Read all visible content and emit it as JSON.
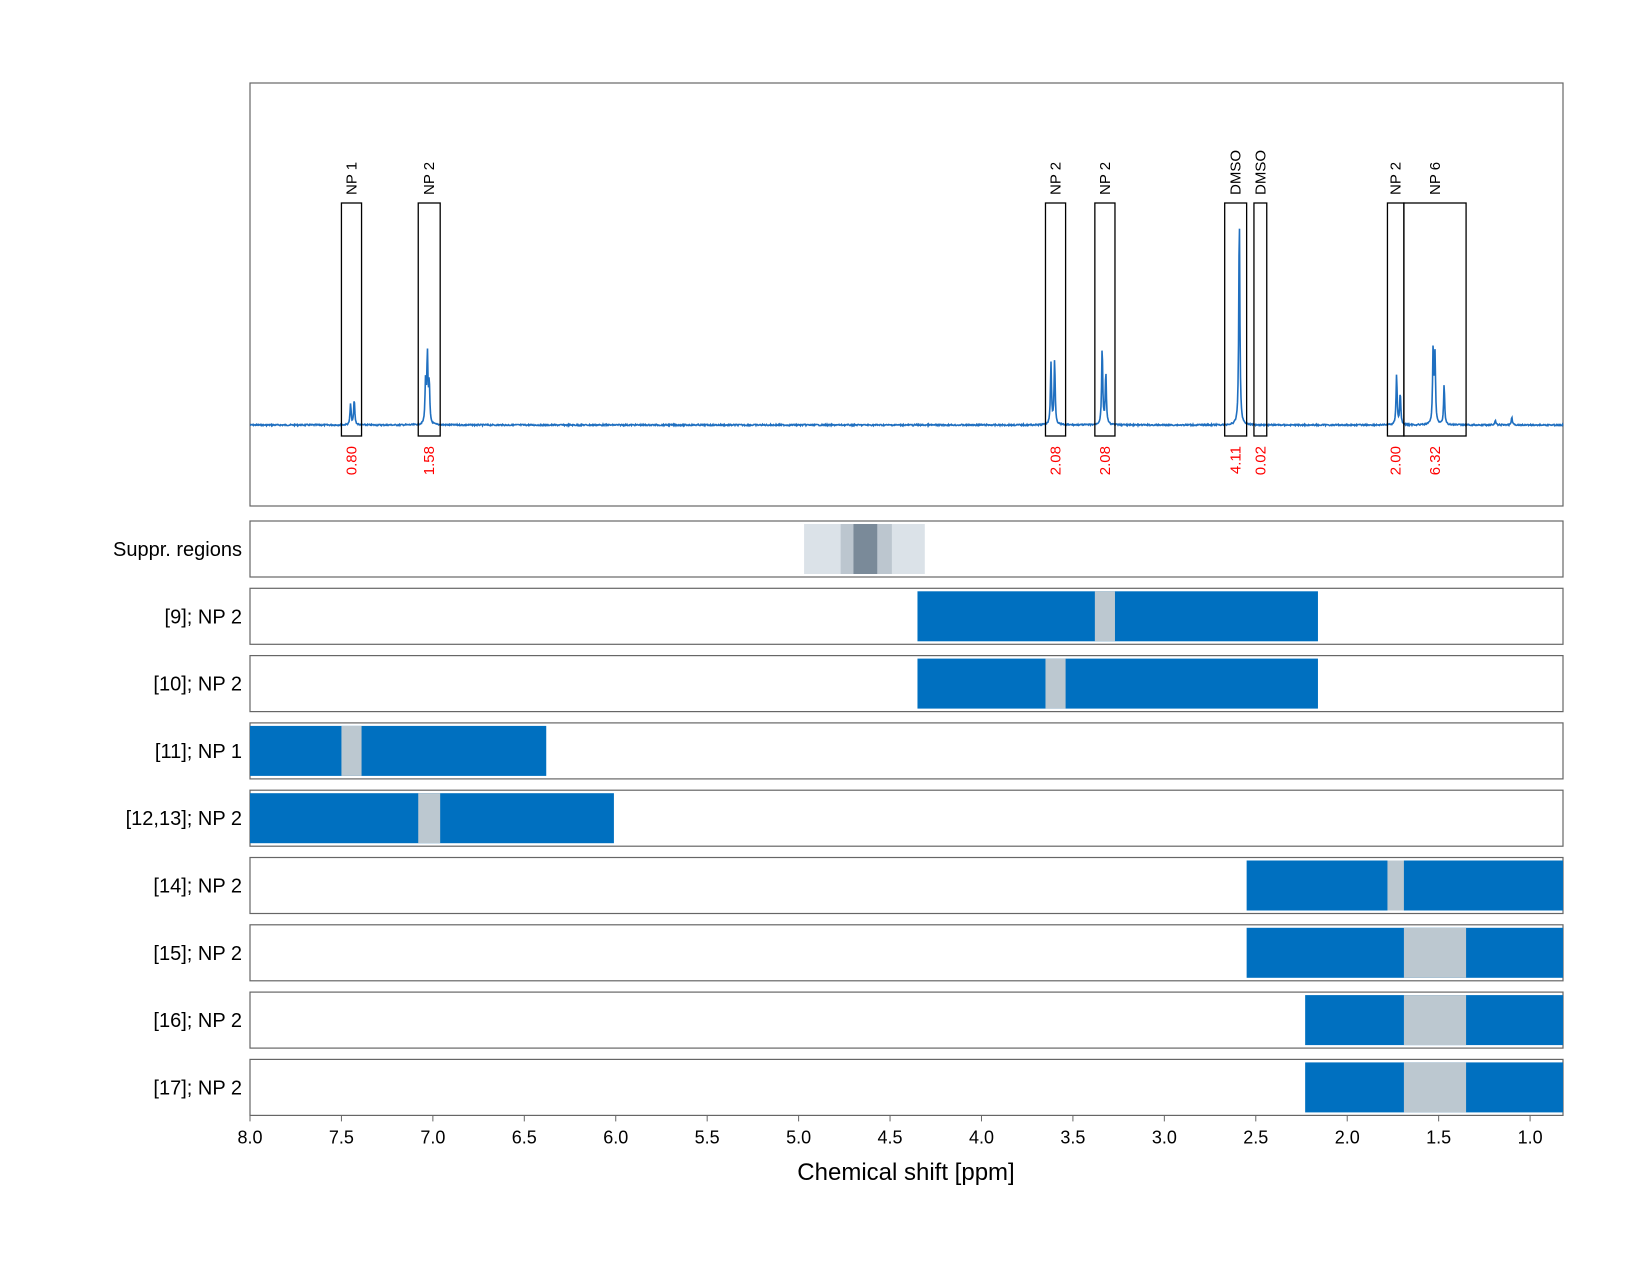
{
  "chart_data": {
    "type": "line",
    "xlabel": "Chemical shift [ppm]",
    "xlim": [
      8.0,
      0.82
    ],
    "x_reversed": true,
    "grid": true,
    "x_ticks": [
      8.0,
      7.5,
      7.0,
      6.5,
      6.0,
      5.5,
      5.0,
      4.5,
      4.0,
      3.5,
      3.0,
      2.5,
      2.0,
      1.5,
      1.0
    ],
    "x_tick_labels": [
      "8.0",
      "7.5",
      "7.0",
      "6.5",
      "6.0",
      "5.5",
      "5.0",
      "4.5",
      "4.0",
      "3.5",
      "3.0",
      "2.5",
      "2.0",
      "1.5",
      "1.0"
    ],
    "colors": {
      "spectrum": "#1f6fc0",
      "bar": "#0070c0",
      "gap": "#bcc8d0",
      "integral": "#ff0000",
      "suppr_light": "#dbe2e8",
      "suppr_mid": "#bcc6cf",
      "suppr_dark": "#7a8a99"
    },
    "spectrum": {
      "peaks": [
        {
          "x": 7.45,
          "height": 0.1
        },
        {
          "x": 7.43,
          "height": 0.12
        },
        {
          "x": 7.04,
          "height": 0.2
        },
        {
          "x": 7.03,
          "height": 0.33
        },
        {
          "x": 7.02,
          "height": 0.19
        },
        {
          "x": 3.62,
          "height": 0.29
        },
        {
          "x": 3.6,
          "height": 0.31
        },
        {
          "x": 3.34,
          "height": 0.37
        },
        {
          "x": 3.32,
          "height": 0.25
        },
        {
          "x": 2.59,
          "height": 1.0
        },
        {
          "x": 1.73,
          "height": 0.24
        },
        {
          "x": 1.71,
          "height": 0.15
        },
        {
          "x": 1.53,
          "height": 0.37
        },
        {
          "x": 1.52,
          "height": 0.32
        },
        {
          "x": 1.47,
          "height": 0.19
        },
        {
          "x": 1.19,
          "height": 0.02
        },
        {
          "x": 1.1,
          "height": 0.035
        }
      ]
    },
    "integration_regions": [
      {
        "label": "NP 1",
        "x_start": 7.5,
        "x_end": 7.39,
        "integral": "0.80"
      },
      {
        "label": "NP 2",
        "x_start": 7.08,
        "x_end": 6.96,
        "integral": "1.58"
      },
      {
        "label": "NP 2",
        "x_start": 3.65,
        "x_end": 3.54,
        "integral": "2.08"
      },
      {
        "label": "NP 2",
        "x_start": 3.38,
        "x_end": 3.27,
        "integral": "2.08"
      },
      {
        "label": "DMSO",
        "x_start": 2.67,
        "x_end": 2.55,
        "integral": "4.11"
      },
      {
        "label": "DMSO",
        "x_start": 2.51,
        "x_end": 2.44,
        "integral": "0.02"
      },
      {
        "label": "NP 2",
        "x_start": 1.78,
        "x_end": 1.69,
        "integral": "2.00"
      },
      {
        "label": "NP 6",
        "x_start": 1.69,
        "x_end": 1.35,
        "integral": "6.32"
      }
    ],
    "suppressed_regions": {
      "label": "Suppr. regions",
      "segments": [
        {
          "x_start": 4.97,
          "x_end": 4.31,
          "level": "light"
        },
        {
          "x_start": 4.77,
          "x_end": 4.49,
          "level": "mid"
        },
        {
          "x_start": 4.7,
          "x_end": 4.57,
          "level": "dark"
        }
      ]
    },
    "rows": [
      {
        "label": "[9]; NP 2",
        "x_start": 4.35,
        "x_end": 2.16,
        "gap": [
          3.38,
          3.27
        ]
      },
      {
        "label": "[10]; NP 2",
        "x_start": 4.35,
        "x_end": 2.16,
        "gap": [
          3.65,
          3.54
        ]
      },
      {
        "label": "[11]; NP 1",
        "x_start": 8.0,
        "x_end": 6.38,
        "gap": [
          7.5,
          7.39
        ]
      },
      {
        "label": "[12,13]; NP 2",
        "x_start": 8.0,
        "x_end": 6.01,
        "gap": [
          7.08,
          6.96
        ]
      },
      {
        "label": "[14]; NP 2",
        "x_start": 2.55,
        "x_end": 0.82,
        "gap": [
          1.78,
          1.69
        ]
      },
      {
        "label": "[15]; NP 2",
        "x_start": 2.55,
        "x_end": 0.82,
        "gap": [
          1.69,
          1.35
        ]
      },
      {
        "label": "[16]; NP 2",
        "x_start": 2.23,
        "x_end": 0.82,
        "gap": [
          1.69,
          1.35
        ]
      },
      {
        "label": "[17]; NP 2",
        "x_start": 2.23,
        "x_end": 0.82,
        "gap": [
          1.69,
          1.35
        ]
      }
    ]
  }
}
